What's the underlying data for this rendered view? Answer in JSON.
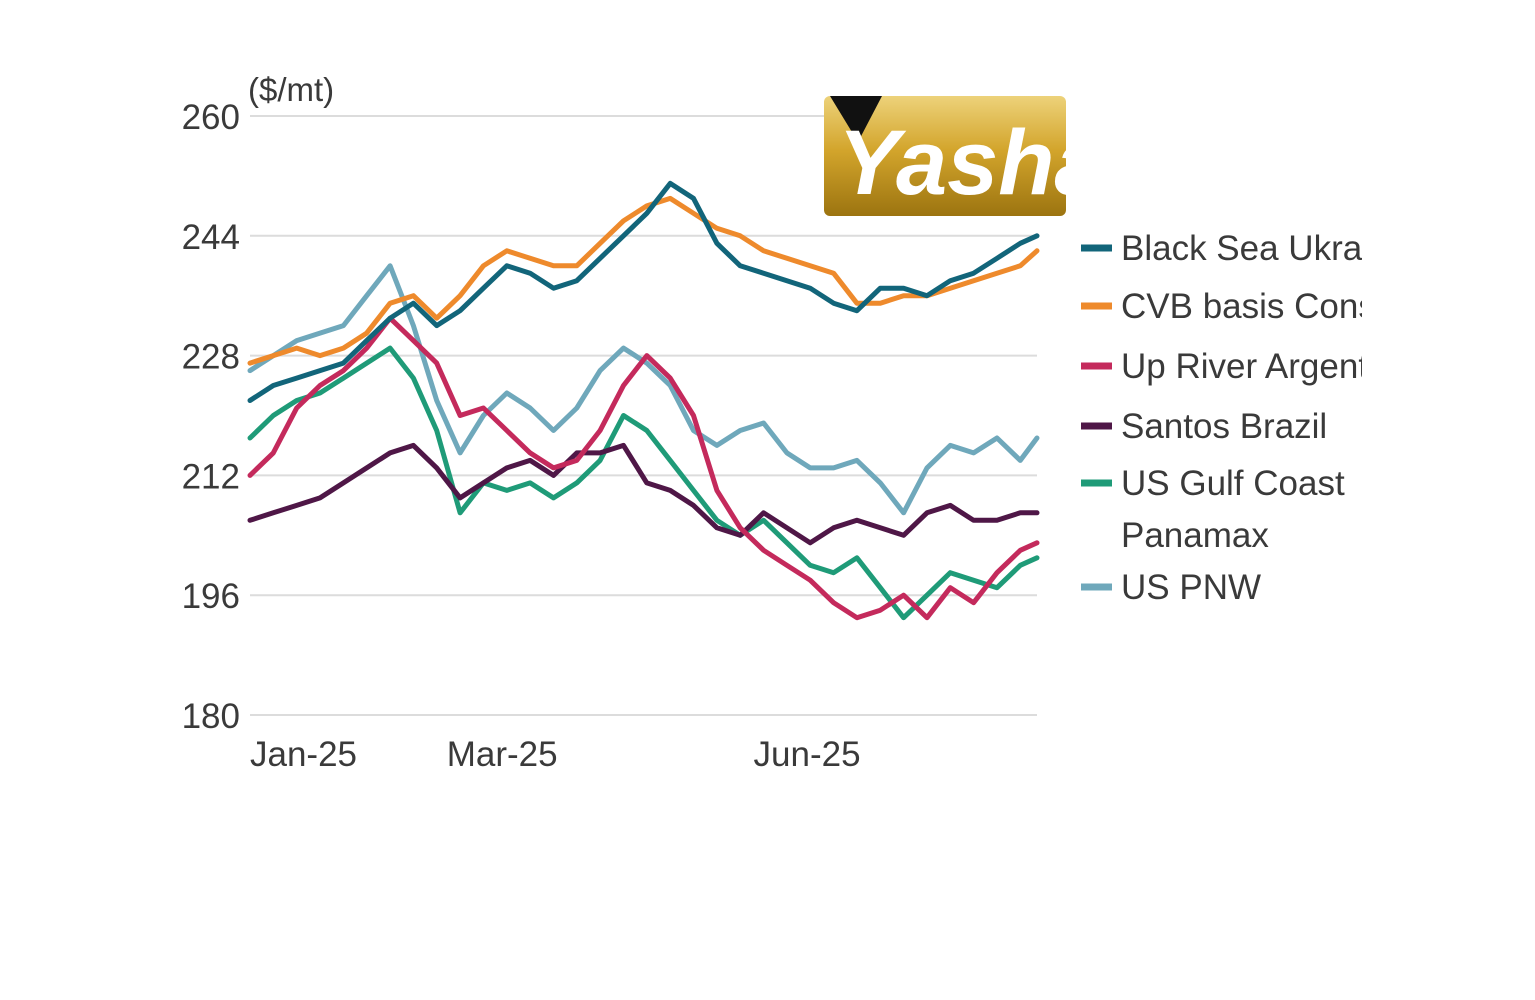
{
  "chart_data": {
    "type": "line",
    "ylabel": "($/mt)",
    "ylim": [
      180,
      260
    ],
    "yticks": [
      180,
      196,
      212,
      228,
      244,
      260
    ],
    "xticks": [
      "Jan-25",
      "Mar-25",
      "Jun-25"
    ],
    "x_range": [
      "2025-01-01",
      "2025-08-25"
    ],
    "grid": true,
    "legend_position": "right",
    "series": [
      {
        "name": "Black Sea Ukraine",
        "color": "#12657a",
        "points": [
          [
            "2025-01-01",
            222
          ],
          [
            "2025-01-08",
            224
          ],
          [
            "2025-01-15",
            225
          ],
          [
            "2025-01-22",
            226
          ],
          [
            "2025-01-29",
            227
          ],
          [
            "2025-02-05",
            230
          ],
          [
            "2025-02-12",
            233
          ],
          [
            "2025-02-19",
            235
          ],
          [
            "2025-02-26",
            232
          ],
          [
            "2025-03-05",
            234
          ],
          [
            "2025-03-12",
            237
          ],
          [
            "2025-03-19",
            240
          ],
          [
            "2025-03-26",
            239
          ],
          [
            "2025-04-02",
            237
          ],
          [
            "2025-04-09",
            238
          ],
          [
            "2025-04-16",
            241
          ],
          [
            "2025-04-23",
            244
          ],
          [
            "2025-04-30",
            247
          ],
          [
            "2025-05-07",
            251
          ],
          [
            "2025-05-14",
            249
          ],
          [
            "2025-05-21",
            243
          ],
          [
            "2025-05-28",
            240
          ],
          [
            "2025-06-04",
            239
          ],
          [
            "2025-06-11",
            238
          ],
          [
            "2025-06-18",
            237
          ],
          [
            "2025-06-25",
            235
          ],
          [
            "2025-07-02",
            234
          ],
          [
            "2025-07-09",
            237
          ],
          [
            "2025-07-16",
            237
          ],
          [
            "2025-07-23",
            236
          ],
          [
            "2025-07-30",
            238
          ],
          [
            "2025-08-06",
            239
          ],
          [
            "2025-08-13",
            241
          ],
          [
            "2025-08-20",
            243
          ],
          [
            "2025-08-25",
            244
          ]
        ]
      },
      {
        "name": "CVB basis Constanta",
        "color": "#ee8a2c",
        "points": [
          [
            "2025-01-01",
            227
          ],
          [
            "2025-01-08",
            228
          ],
          [
            "2025-01-15",
            229
          ],
          [
            "2025-01-22",
            228
          ],
          [
            "2025-01-29",
            229
          ],
          [
            "2025-02-05",
            231
          ],
          [
            "2025-02-12",
            235
          ],
          [
            "2025-02-19",
            236
          ],
          [
            "2025-02-26",
            233
          ],
          [
            "2025-03-05",
            236
          ],
          [
            "2025-03-12",
            240
          ],
          [
            "2025-03-19",
            242
          ],
          [
            "2025-03-26",
            241
          ],
          [
            "2025-04-02",
            240
          ],
          [
            "2025-04-09",
            240
          ],
          [
            "2025-04-16",
            243
          ],
          [
            "2025-04-23",
            246
          ],
          [
            "2025-04-30",
            248
          ],
          [
            "2025-05-07",
            249
          ],
          [
            "2025-05-14",
            247
          ],
          [
            "2025-05-21",
            245
          ],
          [
            "2025-05-28",
            244
          ],
          [
            "2025-06-04",
            242
          ],
          [
            "2025-06-11",
            241
          ],
          [
            "2025-06-18",
            240
          ],
          [
            "2025-06-25",
            239
          ],
          [
            "2025-07-02",
            235
          ],
          [
            "2025-07-09",
            235
          ],
          [
            "2025-07-16",
            236
          ],
          [
            "2025-07-23",
            236
          ],
          [
            "2025-07-30",
            237
          ],
          [
            "2025-08-06",
            238
          ],
          [
            "2025-08-13",
            239
          ],
          [
            "2025-08-20",
            240
          ],
          [
            "2025-08-25",
            242
          ]
        ]
      },
      {
        "name": "Up River Argentina",
        "color": "#c42a5c",
        "points": [
          [
            "2025-01-01",
            212
          ],
          [
            "2025-01-08",
            215
          ],
          [
            "2025-01-15",
            221
          ],
          [
            "2025-01-22",
            224
          ],
          [
            "2025-01-29",
            226
          ],
          [
            "2025-02-05",
            229
          ],
          [
            "2025-02-12",
            233
          ],
          [
            "2025-02-19",
            230
          ],
          [
            "2025-02-26",
            227
          ],
          [
            "2025-03-05",
            220
          ],
          [
            "2025-03-12",
            221
          ],
          [
            "2025-03-19",
            218
          ],
          [
            "2025-03-26",
            215
          ],
          [
            "2025-04-02",
            213
          ],
          [
            "2025-04-09",
            214
          ],
          [
            "2025-04-16",
            218
          ],
          [
            "2025-04-23",
            224
          ],
          [
            "2025-04-30",
            228
          ],
          [
            "2025-05-07",
            225
          ],
          [
            "2025-05-14",
            220
          ],
          [
            "2025-05-21",
            210
          ],
          [
            "2025-05-28",
            205
          ],
          [
            "2025-06-04",
            202
          ],
          [
            "2025-06-11",
            200
          ],
          [
            "2025-06-18",
            198
          ],
          [
            "2025-06-25",
            195
          ],
          [
            "2025-07-02",
            193
          ],
          [
            "2025-07-09",
            194
          ],
          [
            "2025-07-16",
            196
          ],
          [
            "2025-07-23",
            193
          ],
          [
            "2025-07-30",
            197
          ],
          [
            "2025-08-06",
            195
          ],
          [
            "2025-08-13",
            199
          ],
          [
            "2025-08-20",
            202
          ],
          [
            "2025-08-25",
            203
          ]
        ]
      },
      {
        "name": "Santos Brazil",
        "color": "#4f1747",
        "points": [
          [
            "2025-01-01",
            206
          ],
          [
            "2025-01-08",
            207
          ],
          [
            "2025-01-15",
            208
          ],
          [
            "2025-01-22",
            209
          ],
          [
            "2025-01-29",
            211
          ],
          [
            "2025-02-05",
            213
          ],
          [
            "2025-02-12",
            215
          ],
          [
            "2025-02-19",
            216
          ],
          [
            "2025-02-26",
            213
          ],
          [
            "2025-03-05",
            209
          ],
          [
            "2025-03-12",
            211
          ],
          [
            "2025-03-19",
            213
          ],
          [
            "2025-03-26",
            214
          ],
          [
            "2025-04-02",
            212
          ],
          [
            "2025-04-09",
            215
          ],
          [
            "2025-04-16",
            215
          ],
          [
            "2025-04-23",
            216
          ],
          [
            "2025-04-30",
            211
          ],
          [
            "2025-05-07",
            210
          ],
          [
            "2025-05-14",
            208
          ],
          [
            "2025-05-21",
            205
          ],
          [
            "2025-05-28",
            204
          ],
          [
            "2025-06-04",
            207
          ],
          [
            "2025-06-11",
            205
          ],
          [
            "2025-06-18",
            203
          ],
          [
            "2025-06-25",
            205
          ],
          [
            "2025-07-02",
            206
          ],
          [
            "2025-07-09",
            205
          ],
          [
            "2025-07-16",
            204
          ],
          [
            "2025-07-23",
            207
          ],
          [
            "2025-07-30",
            208
          ],
          [
            "2025-08-06",
            206
          ],
          [
            "2025-08-13",
            206
          ],
          [
            "2025-08-20",
            207
          ],
          [
            "2025-08-25",
            207
          ]
        ]
      },
      {
        "name": "US Gulf Coast Panamax",
        "color": "#1f9b78",
        "points": [
          [
            "2025-01-01",
            217
          ],
          [
            "2025-01-08",
            220
          ],
          [
            "2025-01-15",
            222
          ],
          [
            "2025-01-22",
            223
          ],
          [
            "2025-01-29",
            225
          ],
          [
            "2025-02-05",
            227
          ],
          [
            "2025-02-12",
            229
          ],
          [
            "2025-02-19",
            225
          ],
          [
            "2025-02-26",
            218
          ],
          [
            "2025-03-05",
            207
          ],
          [
            "2025-03-12",
            211
          ],
          [
            "2025-03-19",
            210
          ],
          [
            "2025-03-26",
            211
          ],
          [
            "2025-04-02",
            209
          ],
          [
            "2025-04-09",
            211
          ],
          [
            "2025-04-16",
            214
          ],
          [
            "2025-04-23",
            220
          ],
          [
            "2025-04-30",
            218
          ],
          [
            "2025-05-07",
            214
          ],
          [
            "2025-05-14",
            210
          ],
          [
            "2025-05-21",
            206
          ],
          [
            "2025-05-28",
            204
          ],
          [
            "2025-06-04",
            206
          ],
          [
            "2025-06-11",
            203
          ],
          [
            "2025-06-18",
            200
          ],
          [
            "2025-06-25",
            199
          ],
          [
            "2025-07-02",
            201
          ],
          [
            "2025-07-09",
            197
          ],
          [
            "2025-07-16",
            193
          ],
          [
            "2025-07-23",
            196
          ],
          [
            "2025-07-30",
            199
          ],
          [
            "2025-08-06",
            198
          ],
          [
            "2025-08-13",
            197
          ],
          [
            "2025-08-20",
            200
          ],
          [
            "2025-08-25",
            201
          ]
        ]
      },
      {
        "name": "US PNW",
        "color": "#6fa8bb",
        "points": [
          [
            "2025-01-01",
            226
          ],
          [
            "2025-01-08",
            228
          ],
          [
            "2025-01-15",
            230
          ],
          [
            "2025-01-22",
            231
          ],
          [
            "2025-01-29",
            232
          ],
          [
            "2025-02-05",
            236
          ],
          [
            "2025-02-12",
            240
          ],
          [
            "2025-02-19",
            232
          ],
          [
            "2025-02-26",
            222
          ],
          [
            "2025-03-05",
            215
          ],
          [
            "2025-03-12",
            220
          ],
          [
            "2025-03-19",
            223
          ],
          [
            "2025-03-26",
            221
          ],
          [
            "2025-04-02",
            218
          ],
          [
            "2025-04-09",
            221
          ],
          [
            "2025-04-16",
            226
          ],
          [
            "2025-04-23",
            229
          ],
          [
            "2025-04-30",
            227
          ],
          [
            "2025-05-07",
            224
          ],
          [
            "2025-05-14",
            218
          ],
          [
            "2025-05-21",
            216
          ],
          [
            "2025-05-28",
            218
          ],
          [
            "2025-06-04",
            219
          ],
          [
            "2025-06-11",
            215
          ],
          [
            "2025-06-18",
            213
          ],
          [
            "2025-06-25",
            213
          ],
          [
            "2025-07-02",
            214
          ],
          [
            "2025-07-09",
            211
          ],
          [
            "2025-07-16",
            207
          ],
          [
            "2025-07-23",
            213
          ],
          [
            "2025-07-30",
            216
          ],
          [
            "2025-08-06",
            215
          ],
          [
            "2025-08-13",
            217
          ],
          [
            "2025-08-20",
            214
          ],
          [
            "2025-08-25",
            217
          ]
        ]
      }
    ]
  },
  "legend": {
    "items": [
      {
        "label": "Black Sea Ukraine",
        "color": "#12657a"
      },
      {
        "label": "CVB basis Constanta",
        "color": "#ee8a2c"
      },
      {
        "label": "Up River Argentina",
        "color": "#c42a5c"
      },
      {
        "label": "Santos Brazil",
        "color": "#4f1747"
      },
      {
        "label": "US Gulf Coast",
        "label2": "Panamax",
        "color": "#1f9b78"
      },
      {
        "label": "US PNW",
        "color": "#6fa8bb"
      }
    ]
  },
  "logo": {
    "text": "Yashar",
    "colors": {
      "gold_light": "#e2bf45",
      "gold_dark": "#9c7410",
      "mark": "#111111"
    }
  },
  "colors": {
    "grid": "#dcdcdc",
    "text": "#3a3a3a",
    "background": "#ffffff"
  }
}
